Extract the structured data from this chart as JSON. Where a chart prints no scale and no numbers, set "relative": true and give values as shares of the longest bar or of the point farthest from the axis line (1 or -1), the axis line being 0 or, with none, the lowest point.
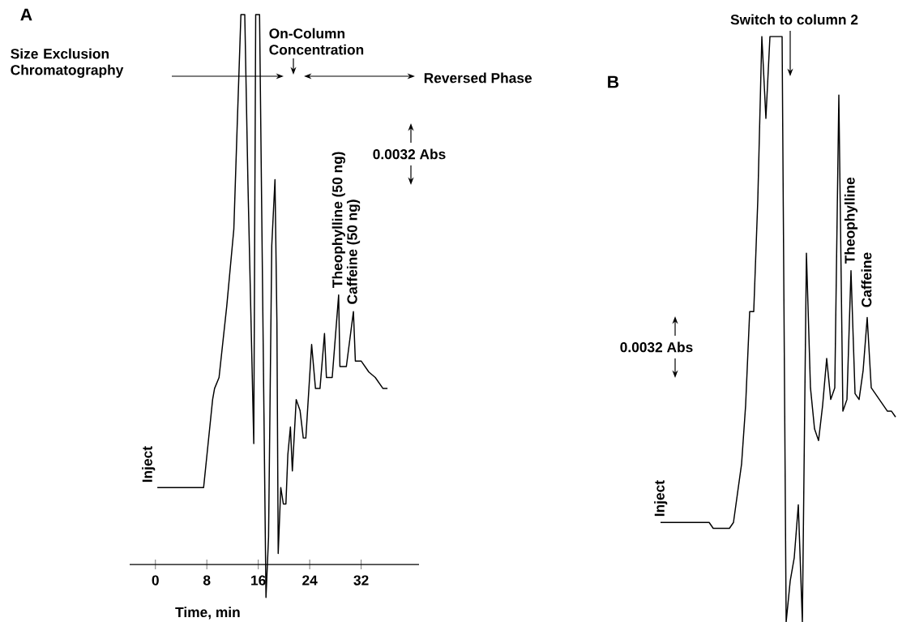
{
  "chart_data": [
    {
      "type": "line",
      "title": "A",
      "xlabel": "Time, min",
      "relative": true,
      "color": "#000000",
      "xlim": [
        -4,
        41
      ],
      "xticks": [
        0,
        8,
        16,
        24,
        32
      ],
      "x": [
        0.3,
        7.5,
        8.9,
        9.2,
        9.9,
        11.1,
        12.2,
        12.7,
        13.3,
        13.9,
        14.4,
        15.3,
        15.6,
        16.2,
        17.2,
        17.6,
        18.1,
        18.6,
        18.9,
        19.1,
        19.5,
        19.9,
        20.3,
        20.6,
        21.0,
        21.3,
        21.9,
        22.5,
        23.0,
        23.4,
        24.3,
        24.9,
        25.6,
        26.3,
        26.6,
        27.5,
        28.5,
        28.7,
        29.7,
        30.8,
        31.1,
        32.0,
        33.2,
        34.2,
        35.4,
        36.1
      ],
      "values": [
        0.14,
        0.14,
        0.3,
        0.32,
        0.34,
        0.47,
        0.61,
        0.79,
        1.0,
        1.0,
        0.69,
        0.22,
        1.0,
        1.0,
        -0.06,
        0.05,
        0.58,
        0.7,
        0.44,
        0.02,
        0.14,
        0.11,
        0.11,
        0.2,
        0.25,
        0.17,
        0.3,
        0.28,
        0.23,
        0.23,
        0.4,
        0.32,
        0.32,
        0.42,
        0.34,
        0.34,
        0.49,
        0.36,
        0.36,
        0.46,
        0.37,
        0.37,
        0.35,
        0.34,
        0.32,
        0.32
      ],
      "annotations": [
        "Size Exclusion Chromatography",
        "On-Column Concentration",
        "Reversed Phase",
        {
          "text": "Theophylline (50 ng)",
          "x": 28.5,
          "y": 0.49
        },
        {
          "text": "Caffeine (50 ng)",
          "x": 30.8,
          "y": 0.46
        },
        "0.0032 Abs",
        "Inject"
      ]
    },
    {
      "type": "line",
      "title": "B",
      "relative": true,
      "color": "#000000",
      "categories": [
        null,
        null,
        null,
        null,
        null,
        null,
        null,
        null,
        null,
        null,
        null,
        null,
        null,
        null,
        null,
        null,
        null,
        null,
        null,
        null,
        null,
        null,
        null,
        null,
        null,
        null,
        null,
        null,
        null,
        null,
        null,
        null,
        null,
        null,
        null,
        null,
        null,
        null,
        null,
        null,
        null,
        null,
        null,
        null,
        null,
        null,
        null,
        null,
        null,
        null,
        null,
        null,
        null,
        null,
        null,
        null,
        null,
        null,
        null
      ],
      "values": [
        0.17,
        0.17,
        0.17,
        0.17,
        0.17,
        0.17,
        0.17,
        0.17,
        0.17,
        0.17,
        0.17,
        0.17,
        0.17,
        0.16,
        0.16,
        0.16,
        0.16,
        0.16,
        0.17,
        0.22,
        0.27,
        0.37,
        0.53,
        0.53,
        0.72,
        1,
        0.86,
        1,
        1,
        1,
        1,
        0,
        0.07,
        0.11,
        0.2,
        0,
        0.63,
        0.4,
        0.33,
        0.31,
        0.37,
        0.45,
        0.38,
        0.4,
        0.9,
        0.36,
        0.38,
        0.6,
        0.39,
        0.38,
        0.43,
        0.52,
        0.4,
        0.39,
        0.38,
        0.37,
        0.36,
        0.36,
        0.35
      ],
      "annotations": [
        "Switch to column 2",
        "0.0032 Abs",
        "Inject",
        "Theophylline",
        "Caffeine"
      ]
    }
  ]
}
